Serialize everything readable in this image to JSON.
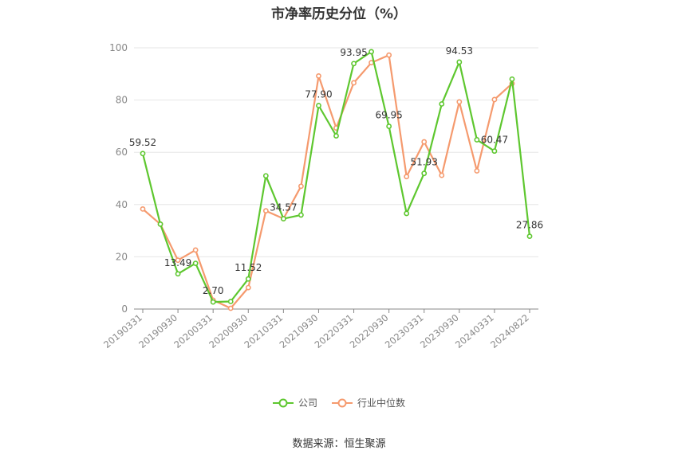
{
  "chart_data": {
    "type": "line",
    "title": "市净率历史分位（%）",
    "x": [
      "20190331",
      "20190630",
      "20190930",
      "20191231",
      "20200331",
      "20200630",
      "20200930",
      "20201231",
      "20210331",
      "20210630",
      "20210930",
      "20211231",
      "20220331",
      "20220630",
      "20220930",
      "20221231",
      "20230331",
      "20230630",
      "20230930",
      "20231231",
      "20240331",
      "20240630",
      "20240822"
    ],
    "x_tick_labels": [
      "20190331",
      "20190930",
      "20200331",
      "20200930",
      "20210331",
      "20210930",
      "20220331",
      "20220930",
      "20230331",
      "20230930",
      "20240331",
      "20240822"
    ],
    "ylim": [
      0,
      100
    ],
    "y_ticks": [
      0,
      20,
      40,
      60,
      80,
      100
    ],
    "grid": true,
    "legend_position": "bottom",
    "series": [
      {
        "name": "公司",
        "color": "#5ec72f",
        "values": [
          59.52,
          32.5,
          13.49,
          17.5,
          2.7,
          2.9,
          11.52,
          51.0,
          34.57,
          36.0,
          77.9,
          66.3,
          93.95,
          98.5,
          69.95,
          36.6,
          51.93,
          78.5,
          94.53,
          64.8,
          60.47,
          88.0,
          27.86
        ],
        "labels": [
          "59.52",
          "",
          "13.49",
          "",
          "2.70",
          "",
          "11.52",
          "",
          "34.57",
          "",
          "77.90",
          "",
          "93.95",
          "",
          "69.95",
          "",
          "51.93",
          "",
          "94.53",
          "",
          "60.47",
          "",
          "27.86"
        ]
      },
      {
        "name": "行业中位数",
        "color": "#f59a6e",
        "values": [
          38.3,
          32.5,
          18.7,
          22.6,
          3.4,
          0.3,
          8.2,
          37.6,
          34.6,
          47.0,
          89.2,
          69.3,
          86.6,
          94.3,
          97.2,
          50.7,
          64.0,
          51.2,
          79.3,
          52.9,
          80.2,
          86.3,
          null
        ]
      }
    ]
  },
  "source_text": "数据来源：恒生聚源"
}
